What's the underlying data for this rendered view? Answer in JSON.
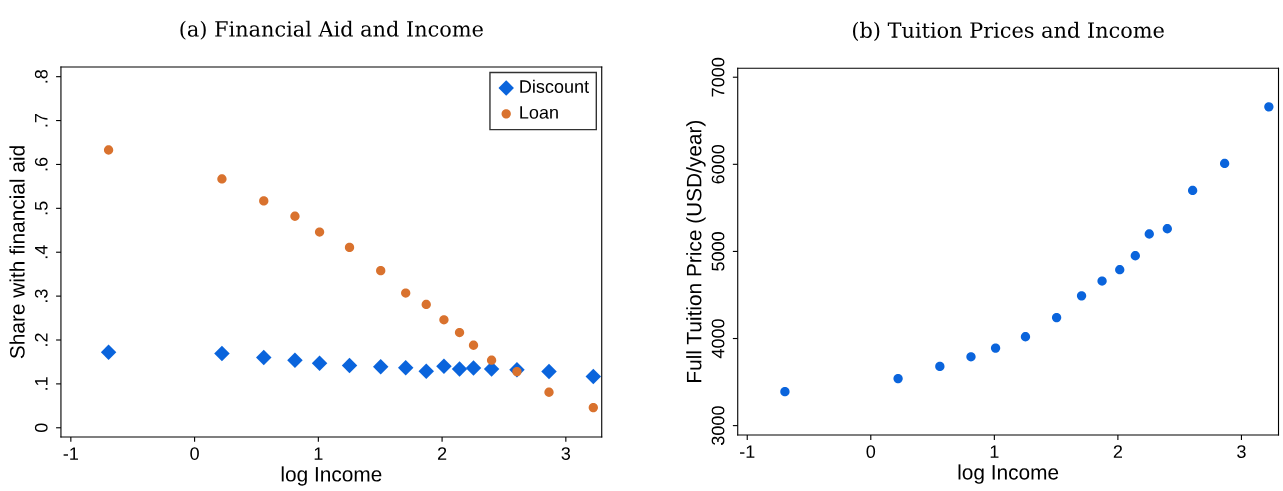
{
  "chart_data": [
    {
      "type": "scatter",
      "title": "(a) Financial Aid and Income",
      "xlabel": "log Income",
      "ylabel": "Share with financial aid",
      "x": [
        -0.695,
        0.221,
        0.559,
        0.811,
        1.01,
        1.252,
        1.504,
        1.706,
        1.872,
        2.015,
        2.141,
        2.254,
        2.4,
        2.605,
        2.864,
        3.222
      ],
      "series": [
        {
          "name": "Discount",
          "color": "#0a64dc",
          "marker": "diamond",
          "values": [
            0.172,
            0.169,
            0.16,
            0.154,
            0.147,
            0.142,
            0.139,
            0.137,
            0.129,
            0.14,
            0.134,
            0.136,
            0.134,
            0.132,
            0.128,
            0.117
          ]
        },
        {
          "name": "Loan",
          "color": "#d9722e",
          "marker": "circle",
          "values": [
            0.633,
            0.567,
            0.517,
            0.482,
            0.446,
            0.411,
            0.358,
            0.307,
            0.281,
            0.246,
            0.217,
            0.188,
            0.154,
            0.128,
            0.081,
            0.046
          ]
        }
      ],
      "xlim": [
        -1.08,
        3.29
      ],
      "xticks": [
        {
          "value": -1,
          "label": "-1"
        },
        0,
        1,
        2,
        3
      ],
      "ylim": [
        -0.021,
        0.822
      ],
      "yticks": [
        0,
        {
          "value": 0.1,
          "label": ".1"
        },
        {
          "value": 0.2,
          "label": ".2"
        },
        {
          "value": 0.3,
          "label": ".3"
        },
        {
          "value": 0.4,
          "label": ".4"
        },
        {
          "value": 0.5,
          "label": ".5"
        },
        {
          "value": 0.6,
          "label": ".6"
        },
        {
          "value": 0.7,
          "label": ".7"
        },
        {
          "value": 0.8,
          "label": ".8"
        }
      ],
      "grid": false,
      "legend": "top right"
    },
    {
      "type": "scatter",
      "title": "(b) Tuition Prices and Income",
      "xlabel": "log Income",
      "ylabel": "Full Tuition Price (USD/year)",
      "x": [
        -0.695,
        0.221,
        0.559,
        0.811,
        1.01,
        1.252,
        1.504,
        1.706,
        1.872,
        2.015,
        2.141,
        2.254,
        2.4,
        2.605,
        2.864,
        3.222
      ],
      "series": [
        {
          "color": "#0a64dc",
          "marker": "circle",
          "values": [
            3390,
            3540,
            3680,
            3790,
            3890,
            4020,
            4240,
            4490,
            4660,
            4790,
            4950,
            5200,
            5260,
            5700,
            6010,
            6660
          ]
        }
      ],
      "xlim": [
        -1.077,
        3.3
      ],
      "xticks": [
        {
          "value": -1,
          "label": "-1"
        },
        0,
        1,
        2,
        3
      ],
      "ylim": [
        2892,
        7103
      ],
      "yticks": [
        3000,
        4000,
        5000,
        6000,
        7000
      ],
      "grid": false,
      "legend": false
    }
  ]
}
